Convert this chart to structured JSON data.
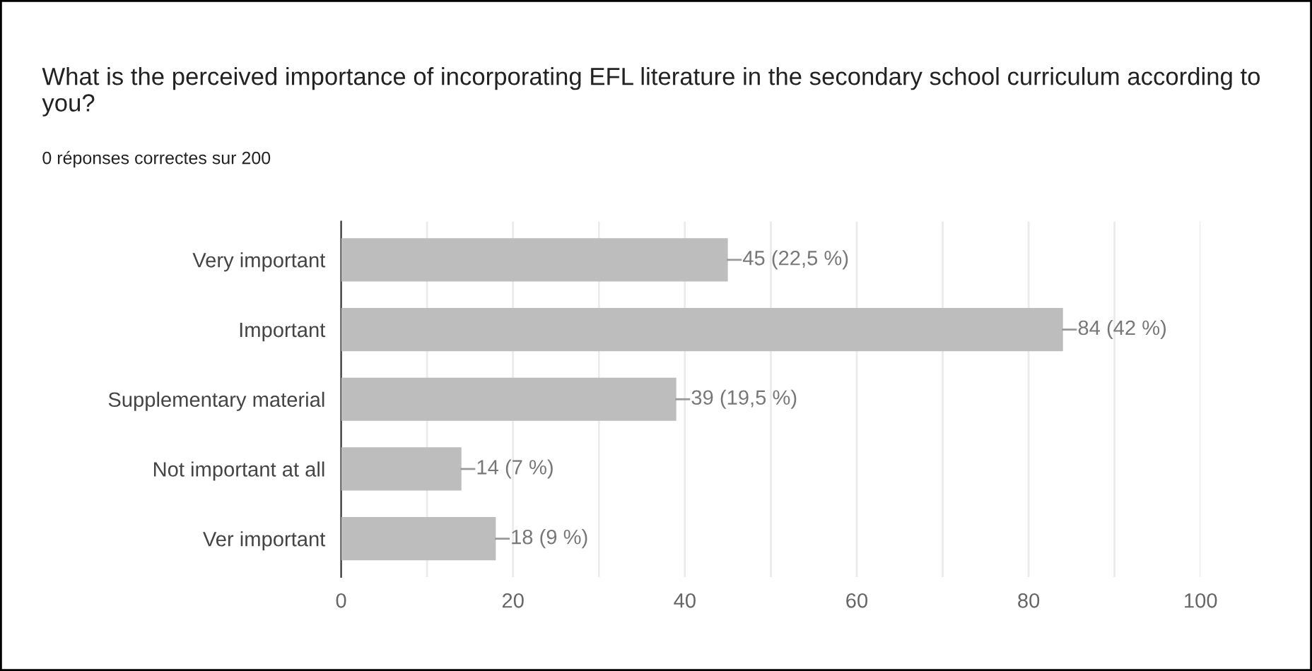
{
  "chart_data": {
    "type": "bar",
    "orientation": "horizontal",
    "title": "What is the perceived importance of incorporating EFL literature in the secondary school curriculum according to you?",
    "subtitle": "0 réponses correctes sur 200",
    "categories": [
      "Very important",
      "Important",
      "Supplementary material",
      "Not important at all",
      "Ver important"
    ],
    "values": [
      45,
      84,
      39,
      14,
      18
    ],
    "value_labels": [
      "45 (22,5 %)",
      "84 (42 %)",
      "39 (19,5 %)",
      "14 (7 %)",
      "18 (9 %)"
    ],
    "color": "#bdbdbd",
    "xlim": [
      0,
      100
    ],
    "xticks": [
      0,
      {
        "value": 10,
        "label": null
      },
      20,
      {
        "value": 30,
        "label": null
      },
      40,
      {
        "value": 50,
        "label": null
      },
      60,
      {
        "value": 70,
        "label": null
      },
      80,
      {
        "value": 90,
        "label": null
      },
      100
    ],
    "grid": "x"
  }
}
